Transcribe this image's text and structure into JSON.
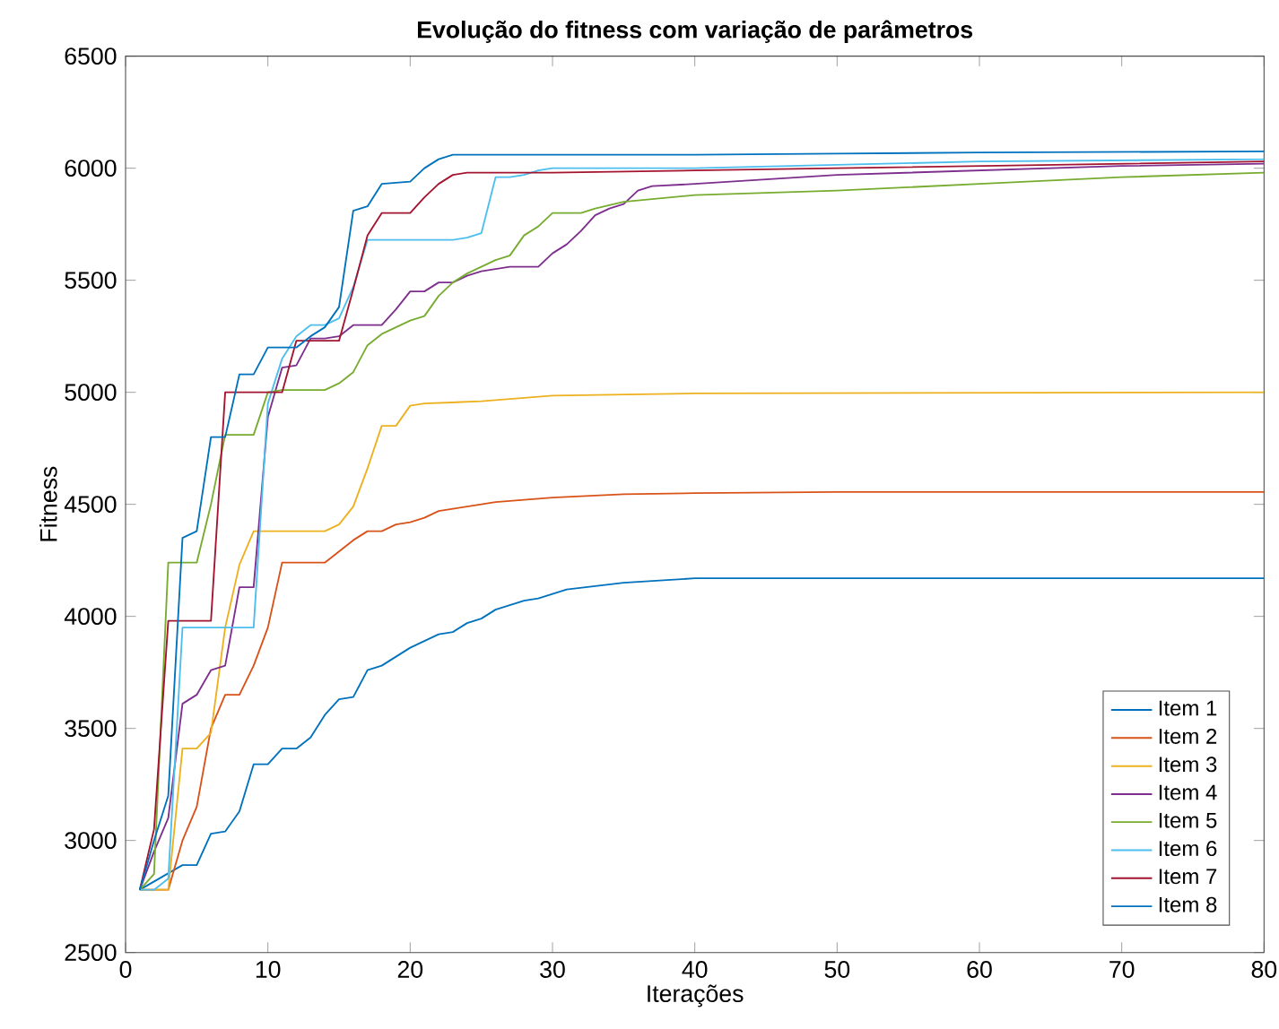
{
  "chart_data": {
    "type": "line",
    "title": "Evolução do fitness com variação de parâmetros",
    "xlabel": "Iterações",
    "ylabel": "Fitness",
    "xlim": [
      0,
      80
    ],
    "ylim": [
      2500,
      6500
    ],
    "xticks": [
      0,
      10,
      20,
      30,
      40,
      50,
      60,
      70,
      80
    ],
    "yticks": [
      2500,
      3000,
      3500,
      4000,
      4500,
      5000,
      5500,
      6000,
      6500
    ],
    "legend": "bottom right",
    "grid": false,
    "marker": "none",
    "line_style": "solid",
    "series": [
      {
        "name": "Item 1",
        "color": "#0072bd",
        "x": [
          1,
          4,
          5,
          6,
          7,
          8,
          9,
          10,
          11,
          12,
          13,
          14,
          15,
          16,
          17,
          18,
          19,
          20,
          21,
          22,
          23,
          24,
          25,
          26,
          27,
          28,
          29,
          30,
          31,
          35,
          40,
          80
        ],
        "values": [
          2780,
          2890,
          2890,
          3030,
          3040,
          3130,
          3340,
          3340,
          3410,
          3410,
          3460,
          3560,
          3630,
          3640,
          3760,
          3780,
          3820,
          3860,
          3890,
          3920,
          3930,
          3970,
          3990,
          4030,
          4050,
          4070,
          4080,
          4100,
          4120,
          4150,
          4170,
          4170
        ]
      },
      {
        "name": "Item 2",
        "color": "#d95319",
        "x": [
          1,
          3,
          4,
          5,
          6,
          7,
          8,
          9,
          10,
          11,
          14,
          15,
          16,
          17,
          18,
          19,
          20,
          21,
          22,
          23,
          25,
          26,
          28,
          30,
          35,
          40,
          50,
          80
        ],
        "values": [
          2780,
          2780,
          3000,
          3150,
          3500,
          3650,
          3650,
          3780,
          3950,
          4240,
          4240,
          4290,
          4340,
          4380,
          4380,
          4410,
          4420,
          4440,
          4470,
          4480,
          4500,
          4510,
          4520,
          4530,
          4545,
          4550,
          4555,
          4555
        ]
      },
      {
        "name": "Item 3",
        "color": "#edb120",
        "x": [
          1,
          3,
          4,
          5,
          6,
          7,
          8,
          9,
          14,
          15,
          16,
          17,
          18,
          19,
          20,
          21,
          25,
          30,
          40,
          80
        ],
        "values": [
          2780,
          2780,
          3410,
          3410,
          3480,
          3950,
          4230,
          4380,
          4380,
          4410,
          4490,
          4660,
          4850,
          4850,
          4940,
          4950,
          4960,
          4985,
          4995,
          5000
        ]
      },
      {
        "name": "Item 4",
        "color": "#7e2f8e",
        "x": [
          1,
          2,
          3,
          4,
          5,
          6,
          7,
          8,
          9,
          10,
          11,
          12,
          13,
          14,
          15,
          16,
          18,
          19,
          20,
          21,
          22,
          23,
          24,
          25,
          26,
          27,
          29,
          30,
          31,
          32,
          33,
          34,
          35,
          36,
          37,
          40,
          45,
          50,
          60,
          70,
          80
        ],
        "values": [
          2780,
          2950,
          3100,
          3610,
          3650,
          3760,
          3780,
          4130,
          4130,
          4890,
          5110,
          5120,
          5240,
          5240,
          5250,
          5300,
          5300,
          5370,
          5450,
          5450,
          5490,
          5490,
          5520,
          5540,
          5550,
          5560,
          5560,
          5620,
          5660,
          5720,
          5790,
          5820,
          5840,
          5900,
          5920,
          5930,
          5950,
          5970,
          5990,
          6010,
          6020
        ]
      },
      {
        "name": "Item 5",
        "color": "#77ac30",
        "x": [
          1,
          2,
          3,
          5,
          6,
          7,
          9,
          10,
          11,
          14,
          15,
          16,
          17,
          18,
          19,
          20,
          21,
          22,
          23,
          24,
          25,
          26,
          27,
          28,
          29,
          30,
          32,
          33,
          35,
          40,
          50,
          60,
          70,
          80
        ],
        "values": [
          2780,
          2850,
          4240,
          4240,
          4500,
          4810,
          4810,
          5000,
          5010,
          5010,
          5040,
          5090,
          5210,
          5260,
          5290,
          5320,
          5340,
          5430,
          5490,
          5530,
          5560,
          5590,
          5610,
          5700,
          5740,
          5800,
          5800,
          5820,
          5850,
          5880,
          5900,
          5930,
          5960,
          5980
        ]
      },
      {
        "name": "Item 6",
        "color": "#4dbeee",
        "x": [
          1,
          2,
          3,
          4,
          9,
          10,
          11,
          12,
          13,
          14,
          15,
          16,
          17,
          23,
          24,
          25,
          26,
          27,
          28,
          29,
          30,
          40,
          60,
          80
        ],
        "values": [
          2780,
          2780,
          2830,
          3950,
          3950,
          4950,
          5150,
          5250,
          5300,
          5300,
          5330,
          5470,
          5680,
          5680,
          5690,
          5710,
          5960,
          5960,
          5970,
          5990,
          6000,
          6000,
          6030,
          6040
        ]
      },
      {
        "name": "Item 7",
        "color": "#a2142f",
        "x": [
          1,
          2,
          3,
          6,
          7,
          11,
          12,
          15,
          16,
          17,
          18,
          20,
          21,
          22,
          23,
          24,
          30,
          40,
          50,
          60,
          80
        ],
        "values": [
          2780,
          3050,
          3980,
          3980,
          5000,
          5000,
          5230,
          5230,
          5460,
          5700,
          5800,
          5800,
          5870,
          5930,
          5970,
          5980,
          5980,
          5990,
          6000,
          6010,
          6030
        ]
      },
      {
        "name": "Item 8",
        "color": "#0072bd",
        "x": [
          1,
          2,
          3,
          4,
          5,
          6,
          7,
          8,
          9,
          10,
          12,
          13,
          14,
          15,
          16,
          17,
          18,
          20,
          21,
          22,
          23,
          40,
          50,
          60,
          80
        ],
        "values": [
          2780,
          3000,
          3200,
          4350,
          4380,
          4800,
          4800,
          5080,
          5080,
          5200,
          5200,
          5250,
          5290,
          5380,
          5810,
          5830,
          5930,
          5940,
          6000,
          6040,
          6060,
          6060,
          6065,
          6070,
          6075
        ]
      }
    ]
  }
}
